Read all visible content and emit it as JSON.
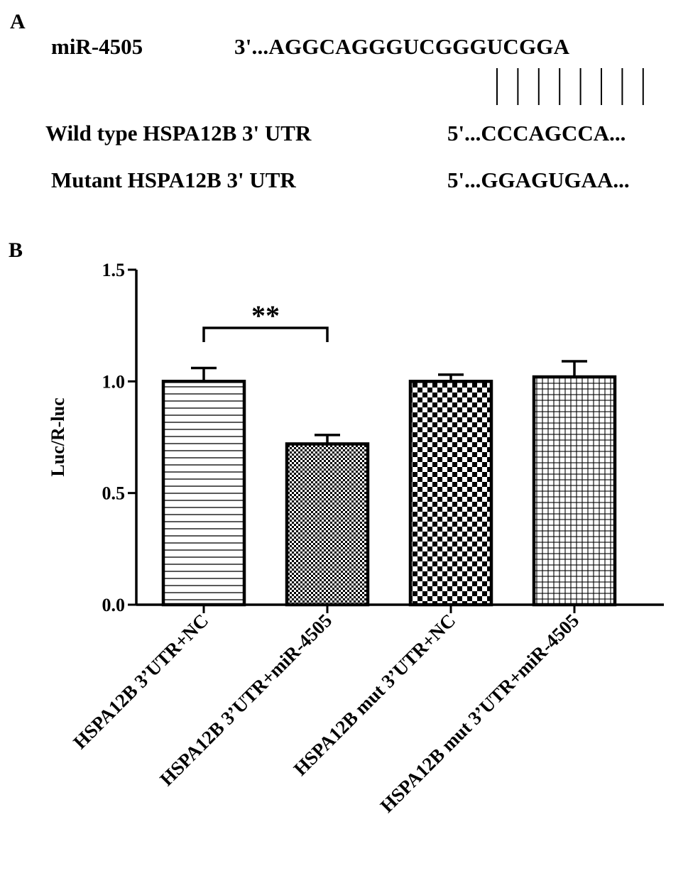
{
  "panel_a": {
    "label": "A",
    "mirna_name": "miR-4505",
    "mirna_seq": "3'...AGGCAGGGUCGGGUCGGA",
    "wt_name": "Wild type HSPA12B 3' UTR",
    "wt_seq": "5'...CCCAGCCA...",
    "mut_name": "Mutant HSPA12B 3' UTR",
    "mut_seq": "5'...GGAGUGAA...",
    "pairing_lines": 8
  },
  "panel_b": {
    "label": "B"
  },
  "chart_data": {
    "type": "bar",
    "categories": [
      "HSPA12B 3’UTR+NC",
      "HSPA12B 3’UTR+miR-4505",
      "HSPA12B mut 3’UTR+NC",
      "HSPA12B mut 3’UTR+miR-4505"
    ],
    "values": [
      1.0,
      0.72,
      1.0,
      1.02
    ],
    "errors": [
      0.06,
      0.04,
      0.03,
      0.07
    ],
    "patterns": [
      "horizontal-lines",
      "fine-checker",
      "coarse-checker",
      "grid"
    ],
    "ylabel": "Luc/R-luc",
    "ylim": [
      0,
      1.5
    ],
    "yticks": [
      0.0,
      0.5,
      1.0,
      1.5
    ],
    "ytick_labels": [
      "0.0",
      "0.5",
      "1.0",
      "1.5"
    ],
    "significance": {
      "from": 0,
      "to": 1,
      "label": "**"
    }
  }
}
